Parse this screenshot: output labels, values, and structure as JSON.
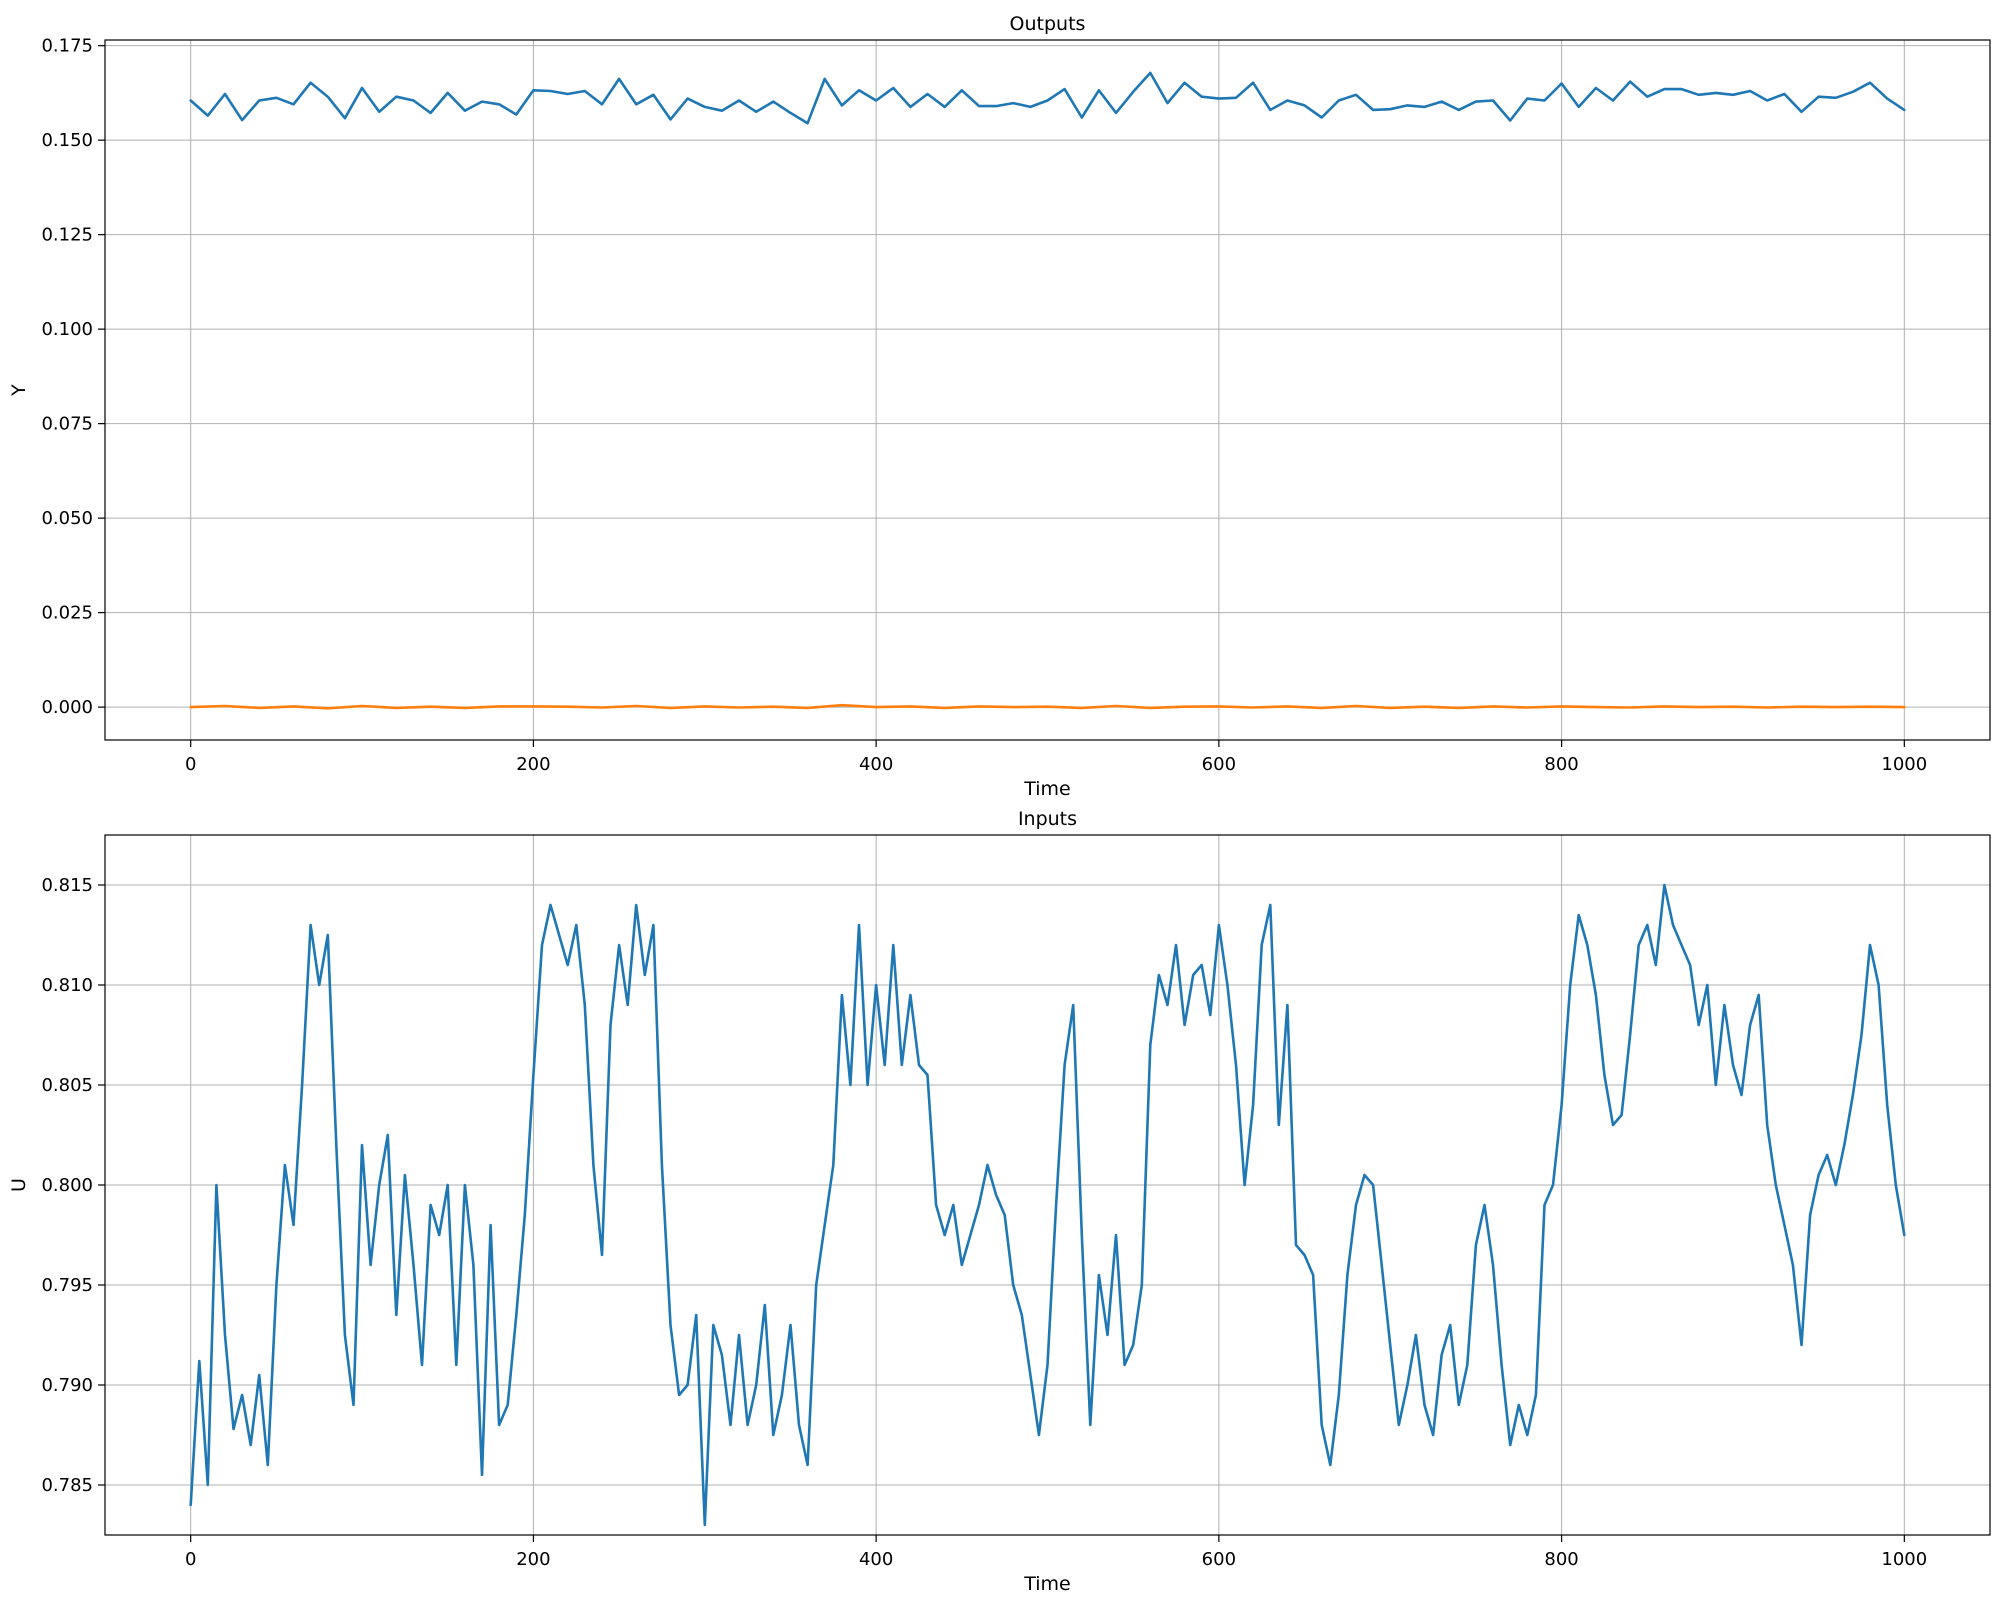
{
  "colors": {
    "series1": "#1f77b4",
    "series2": "#ff7f0e",
    "grid": "#b0b0b0",
    "axes": "#000000",
    "background": "#ffffff"
  },
  "chart_data": [
    {
      "type": "line",
      "title": "Outputs",
      "xlabel": "Time",
      "ylabel": "Y",
      "xlim": [
        -50,
        1050
      ],
      "ylim": [
        -0.0087,
        0.1765
      ],
      "grid": true,
      "xticks": [
        0,
        200,
        400,
        600,
        800,
        1000
      ],
      "xtick_labels": [
        "0",
        "200",
        "400",
        "600",
        "800",
        "1000"
      ],
      "yticks": [
        0,
        0.025,
        0.05,
        0.075,
        0.1,
        0.125,
        0.15,
        0.175
      ],
      "ytick_labels": [
        "0.000",
        "0.025",
        "0.050",
        "0.075",
        "0.100",
        "0.125",
        "0.150",
        "0.175"
      ],
      "series": [
        {
          "color": "#1f77b4",
          "x": [
            0,
            10,
            20,
            30,
            40,
            50,
            60,
            70,
            80,
            90,
            100,
            110,
            120,
            130,
            140,
            150,
            160,
            170,
            180,
            190,
            200,
            210,
            220,
            230,
            240,
            250,
            260,
            270,
            280,
            290,
            300,
            310,
            320,
            330,
            340,
            350,
            360,
            370,
            380,
            390,
            400,
            410,
            420,
            430,
            440,
            450,
            460,
            470,
            480,
            490,
            500,
            510,
            520,
            530,
            540,
            550,
            560,
            570,
            580,
            590,
            600,
            610,
            620,
            630,
            640,
            650,
            660,
            670,
            680,
            690,
            700,
            710,
            720,
            730,
            740,
            750,
            760,
            770,
            780,
            790,
            800,
            810,
            820,
            830,
            840,
            850,
            860,
            870,
            880,
            890,
            900,
            910,
            920,
            930,
            940,
            950,
            960,
            970,
            980,
            990,
            1000
          ],
          "y": [
            0.1605,
            0.1565,
            0.1622,
            0.1553,
            0.1605,
            0.1612,
            0.1595,
            0.1652,
            0.1615,
            0.1558,
            0.1638,
            0.1575,
            0.1615,
            0.1605,
            0.1572,
            0.1625,
            0.1578,
            0.1602,
            0.1595,
            0.1568,
            0.1632,
            0.163,
            0.1622,
            0.163,
            0.1595,
            0.1662,
            0.1595,
            0.162,
            0.1555,
            0.161,
            0.1588,
            0.1578,
            0.1605,
            0.1575,
            0.1602,
            0.1572,
            0.1545,
            0.1662,
            0.1592,
            0.1632,
            0.1605,
            0.1638,
            0.1588,
            0.1622,
            0.1588,
            0.1632,
            0.159,
            0.159,
            0.1598,
            0.1588,
            0.1605,
            0.1635,
            0.156,
            0.1632,
            0.1572,
            0.1628,
            0.1678,
            0.1598,
            0.1652,
            0.1615,
            0.161,
            0.1612,
            0.1652,
            0.158,
            0.1605,
            0.1592,
            0.156,
            0.1605,
            0.162,
            0.158,
            0.1582,
            0.1592,
            0.1588,
            0.1602,
            0.158,
            0.1602,
            0.1605,
            0.1552,
            0.161,
            0.1605,
            0.165,
            0.1588,
            0.1638,
            0.1605,
            0.1655,
            0.1615,
            0.1635,
            0.1635,
            0.162,
            0.1625,
            0.162,
            0.163,
            0.1605,
            0.1622,
            0.1575,
            0.1615,
            0.1612,
            0.1628,
            0.1652,
            0.161,
            0.158
          ]
        },
        {
          "color": "#ff7f0e",
          "x": [
            0,
            20,
            40,
            60,
            80,
            100,
            120,
            140,
            160,
            180,
            200,
            220,
            240,
            260,
            280,
            300,
            320,
            340,
            360,
            380,
            400,
            420,
            440,
            460,
            480,
            500,
            520,
            540,
            560,
            580,
            600,
            620,
            640,
            660,
            680,
            700,
            720,
            740,
            760,
            780,
            800,
            820,
            840,
            860,
            880,
            900,
            920,
            940,
            960,
            980,
            1000
          ],
          "y": [
            0.0,
            0.0003,
            -0.0002,
            0.0002,
            -0.0003,
            0.0003,
            -0.0002,
            0.0001,
            -0.0002,
            0.0002,
            0.0002,
            0.0001,
            -0.0001,
            0.0003,
            -0.0002,
            0.0002,
            -0.0001,
            0.0001,
            -0.0002,
            0.0005,
            0.0,
            0.0002,
            -0.0002,
            0.0002,
            0.0,
            0.0001,
            -0.0002,
            0.0003,
            -0.0002,
            0.0001,
            0.0002,
            -0.0001,
            0.0002,
            -0.0002,
            0.0003,
            -0.0002,
            0.0001,
            -0.0002,
            0.0002,
            -0.0001,
            0.0002,
            0.0,
            -0.0001,
            0.0002,
            0.0,
            0.0001,
            -0.0001,
            0.0001,
            0.0,
            0.0001,
            0.0
          ]
        }
      ]
    },
    {
      "type": "line",
      "title": "Inputs",
      "xlabel": "Time",
      "ylabel": "U",
      "xlim": [
        -50,
        1050
      ],
      "ylim": [
        0.7825,
        0.8175
      ],
      "grid": true,
      "xticks": [
        0,
        200,
        400,
        600,
        800,
        1000
      ],
      "xtick_labels": [
        "0",
        "200",
        "400",
        "600",
        "800",
        "1000"
      ],
      "yticks": [
        0.785,
        0.79,
        0.795,
        0.8,
        0.805,
        0.81,
        0.815
      ],
      "ytick_labels": [
        "0.785",
        "0.790",
        "0.795",
        "0.800",
        "0.805",
        "0.810",
        "0.815"
      ],
      "series": [
        {
          "color": "#1f77b4",
          "x": [
            0,
            5,
            10,
            15,
            20,
            25,
            30,
            35,
            40,
            45,
            50,
            55,
            60,
            65,
            70,
            75,
            80,
            85,
            90,
            95,
            100,
            105,
            110,
            115,
            120,
            125,
            130,
            135,
            140,
            145,
            150,
            155,
            160,
            165,
            170,
            175,
            180,
            185,
            190,
            195,
            200,
            205,
            210,
            215,
            220,
            225,
            230,
            235,
            240,
            245,
            250,
            255,
            260,
            265,
            270,
            275,
            280,
            285,
            290,
            295,
            300,
            305,
            310,
            315,
            320,
            325,
            330,
            335,
            340,
            345,
            350,
            355,
            360,
            365,
            370,
            375,
            380,
            385,
            390,
            395,
            400,
            405,
            410,
            415,
            420,
            425,
            430,
            435,
            440,
            445,
            450,
            455,
            460,
            465,
            470,
            475,
            480,
            485,
            490,
            495,
            500,
            505,
            510,
            515,
            520,
            525,
            530,
            535,
            540,
            545,
            550,
            555,
            560,
            565,
            570,
            575,
            580,
            585,
            590,
            595,
            600,
            605,
            610,
            615,
            620,
            625,
            630,
            635,
            640,
            645,
            650,
            655,
            660,
            665,
            670,
            675,
            680,
            685,
            690,
            695,
            700,
            705,
            710,
            715,
            720,
            725,
            730,
            735,
            740,
            745,
            750,
            755,
            760,
            765,
            770,
            775,
            780,
            785,
            790,
            795,
            800,
            805,
            810,
            815,
            820,
            825,
            830,
            835,
            840,
            845,
            850,
            855,
            860,
            865,
            870,
            875,
            880,
            885,
            890,
            895,
            900,
            905,
            910,
            915,
            920,
            925,
            930,
            935,
            940,
            945,
            950,
            955,
            960,
            965,
            970,
            975,
            980,
            985,
            990,
            995,
            1000
          ],
          "y": [
            0.784,
            0.7912,
            0.785,
            0.8,
            0.7925,
            0.7878,
            0.7895,
            0.787,
            0.7905,
            0.786,
            0.795,
            0.801,
            0.798,
            0.805,
            0.813,
            0.81,
            0.8125,
            0.802,
            0.7925,
            0.789,
            0.802,
            0.796,
            0.8,
            0.8025,
            0.7935,
            0.8005,
            0.796,
            0.791,
            0.799,
            0.7975,
            0.8,
            0.791,
            0.8,
            0.796,
            0.7855,
            0.798,
            0.788,
            0.789,
            0.7935,
            0.7985,
            0.8055,
            0.812,
            0.814,
            0.8125,
            0.811,
            0.813,
            0.809,
            0.801,
            0.7965,
            0.808,
            0.812,
            0.809,
            0.814,
            0.8105,
            0.813,
            0.801,
            0.793,
            0.7895,
            0.79,
            0.7935,
            0.783,
            0.793,
            0.7915,
            0.788,
            0.7925,
            0.788,
            0.79,
            0.794,
            0.7875,
            0.7895,
            0.793,
            0.788,
            0.786,
            0.795,
            0.798,
            0.801,
            0.8095,
            0.805,
            0.813,
            0.805,
            0.81,
            0.806,
            0.812,
            0.806,
            0.8095,
            0.806,
            0.8055,
            0.799,
            0.7975,
            0.799,
            0.796,
            0.7975,
            0.799,
            0.801,
            0.7995,
            0.7985,
            0.795,
            0.7935,
            0.7905,
            0.7875,
            0.791,
            0.799,
            0.806,
            0.809,
            0.7975,
            0.788,
            0.7955,
            0.7925,
            0.7975,
            0.791,
            0.792,
            0.795,
            0.807,
            0.8105,
            0.809,
            0.812,
            0.808,
            0.8105,
            0.811,
            0.8085,
            0.813,
            0.81,
            0.806,
            0.8,
            0.804,
            0.812,
            0.814,
            0.803,
            0.809,
            0.797,
            0.7965,
            0.7955,
            0.788,
            0.786,
            0.7895,
            0.7955,
            0.799,
            0.8005,
            0.8,
            0.796,
            0.792,
            0.788,
            0.79,
            0.7925,
            0.789,
            0.7875,
            0.7915,
            0.793,
            0.789,
            0.791,
            0.797,
            0.799,
            0.796,
            0.791,
            0.787,
            0.789,
            0.7875,
            0.7895,
            0.799,
            0.8,
            0.804,
            0.81,
            0.8135,
            0.812,
            0.8095,
            0.8055,
            0.803,
            0.8035,
            0.8075,
            0.812,
            0.813,
            0.811,
            0.815,
            0.813,
            0.812,
            0.811,
            0.808,
            0.81,
            0.805,
            0.809,
            0.806,
            0.8045,
            0.808,
            0.8095,
            0.803,
            0.8,
            0.798,
            0.796,
            0.792,
            0.7985,
            0.8005,
            0.8015,
            0.8,
            0.802,
            0.8045,
            0.8075,
            0.812,
            0.81,
            0.804,
            0.8,
            0.7975
          ]
        }
      ]
    }
  ]
}
